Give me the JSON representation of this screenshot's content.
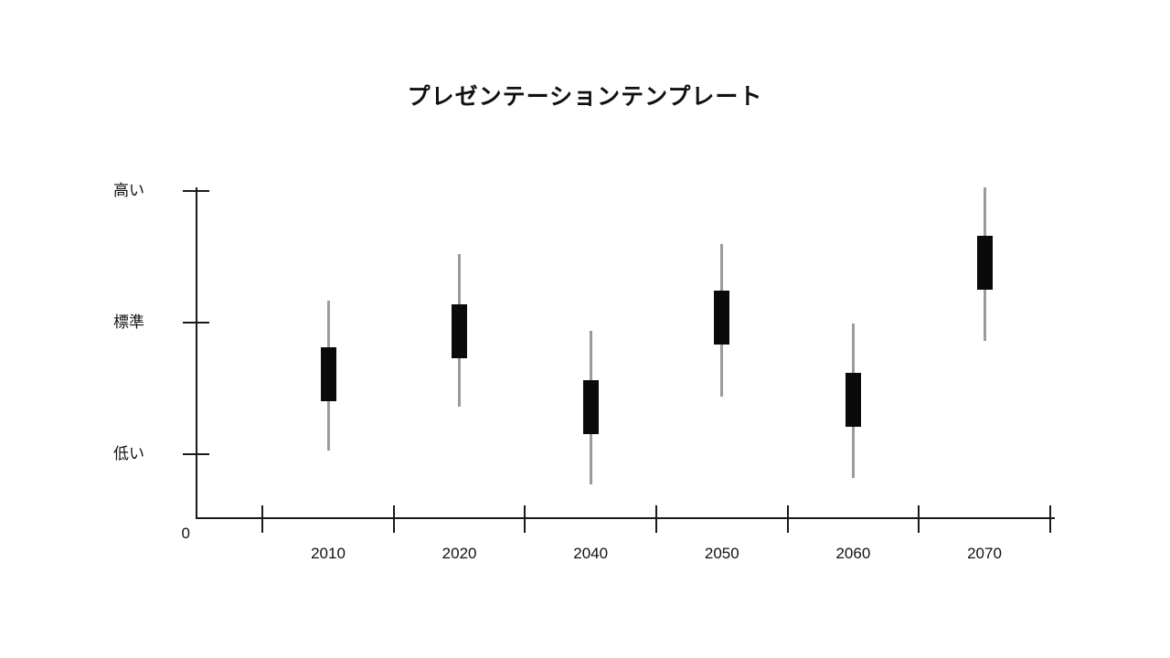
{
  "chart_data": {
    "type": "candlestick",
    "title": "プレゼンテーションテンプレート",
    "origin_label": "0",
    "categories": [
      "2010",
      "2020",
      "2040",
      "2050",
      "2060",
      "2070"
    ],
    "y_ticks": [
      {
        "label": "高い",
        "value": 3
      },
      {
        "label": "標準",
        "value": 2
      },
      {
        "label": "低い",
        "value": 1
      }
    ],
    "ylim": [
      0,
      3.2
    ],
    "grid": "off",
    "legend": "none",
    "candles": [
      {
        "category": "2010",
        "high": 2.17,
        "box_top": 1.81,
        "box_bottom": 1.4,
        "low": 1.03
      },
      {
        "category": "2020",
        "high": 2.52,
        "box_top": 2.14,
        "box_bottom": 1.73,
        "low": 1.36
      },
      {
        "category": "2040",
        "high": 1.94,
        "box_top": 1.56,
        "box_bottom": 1.15,
        "low": 0.77
      },
      {
        "category": "2050",
        "high": 2.6,
        "box_top": 2.24,
        "box_bottom": 1.83,
        "low": 1.44
      },
      {
        "category": "2060",
        "high": 1.99,
        "box_top": 1.62,
        "box_bottom": 1.21,
        "low": 0.82
      },
      {
        "category": "2070",
        "high": 3.03,
        "box_top": 2.66,
        "box_bottom": 2.25,
        "low": 1.86
      }
    ],
    "colors": {
      "body": "#0a0a0a",
      "wick": "#9b9b9b",
      "axis": "#1a1a1a",
      "text": "#111111",
      "background": "#ffffff"
    }
  }
}
